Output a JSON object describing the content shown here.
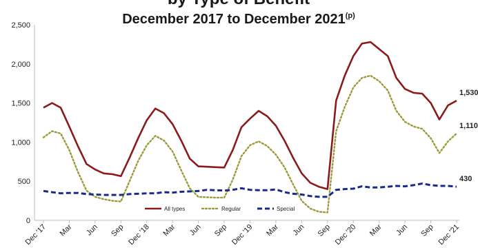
{
  "chart_data": {
    "type": "line",
    "title_line1": "by Type of Benefit",
    "title_line2": "December 2017 to December 2021",
    "title_sup": "(p)",
    "yticks": [
      "0",
      "500",
      "1,000",
      "1,500",
      "2,000",
      "2,500"
    ],
    "ylim": [
      0,
      2500
    ],
    "xtick_labels": [
      "Dec '17",
      "Mar",
      "Jun",
      "Sep",
      "Dec '18",
      "Mar",
      "Jun",
      "Sep",
      "Dec '19",
      "Mar",
      "Jun",
      "Sep",
      "Dec '20",
      "Mar",
      "Jun",
      "Sep",
      "Dec '21"
    ],
    "legend_placement": "bottom-center",
    "series": [
      {
        "name": "All types",
        "color": "#8b1a1a",
        "style": "solid",
        "end_label": "1,530",
        "values": [
          1440,
          1500,
          1440,
          1200,
          950,
          720,
          650,
          600,
          590,
          565,
          800,
          1050,
          1280,
          1430,
          1370,
          1230,
          1020,
          790,
          690,
          685,
          680,
          675,
          900,
          1190,
          1300,
          1400,
          1330,
          1210,
          1020,
          800,
          600,
          480,
          430,
          400,
          1530,
          1850,
          2100,
          2260,
          2280,
          2190,
          2100,
          1820,
          1680,
          1630,
          1620,
          1500,
          1290,
          1470,
          1530
        ]
      },
      {
        "name": "Regular",
        "color": "#9a9a3a",
        "style": "dotted",
        "end_label": "1,110",
        "values": [
          1060,
          1140,
          1110,
          900,
          620,
          380,
          300,
          270,
          250,
          240,
          500,
          760,
          960,
          1080,
          1020,
          880,
          640,
          410,
          300,
          295,
          290,
          290,
          520,
          820,
          960,
          1010,
          950,
          840,
          680,
          460,
          250,
          150,
          110,
          100,
          1140,
          1450,
          1700,
          1820,
          1850,
          1780,
          1660,
          1400,
          1260,
          1200,
          1170,
          1050,
          860,
          1010,
          1110
        ]
      },
      {
        "name": "Special",
        "color": "#1a2a8a",
        "style": "dashed",
        "end_label": "430",
        "values": [
          375,
          360,
          345,
          350,
          350,
          335,
          330,
          325,
          325,
          325,
          335,
          340,
          345,
          345,
          360,
          355,
          365,
          370,
          375,
          390,
          385,
          380,
          390,
          410,
          390,
          385,
          385,
          395,
          360,
          340,
          330,
          310,
          300,
          300,
          390,
          400,
          405,
          435,
          420,
          420,
          430,
          440,
          435,
          450,
          470,
          450,
          440,
          440,
          430
        ]
      }
    ]
  }
}
